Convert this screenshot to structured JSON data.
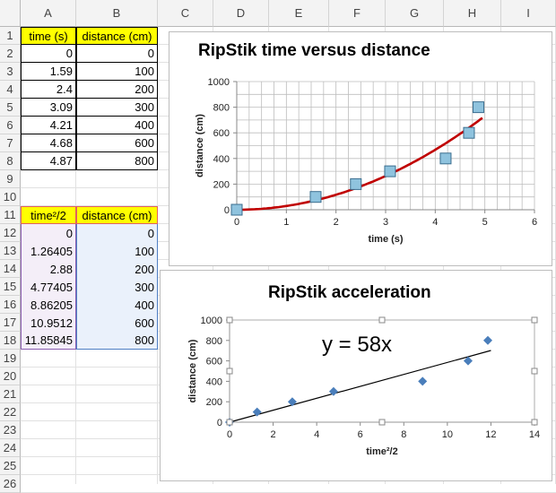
{
  "sheet": {
    "columns": [
      "A",
      "B",
      "C",
      "D",
      "E",
      "F",
      "G",
      "H",
      "I"
    ],
    "rows": [
      "1",
      "2",
      "3",
      "4",
      "5",
      "6",
      "7",
      "8",
      "9",
      "10",
      "11",
      "12",
      "13",
      "14",
      "15",
      "16",
      "17",
      "18",
      "19",
      "20",
      "21",
      "22",
      "23",
      "24",
      "25",
      "26"
    ],
    "table1": {
      "headers": [
        "time (s)",
        "distance (cm)"
      ],
      "rows": [
        [
          "0",
          "0"
        ],
        [
          "1.59",
          "100"
        ],
        [
          "2.4",
          "200"
        ],
        [
          "3.09",
          "300"
        ],
        [
          "4.21",
          "400"
        ],
        [
          "4.68",
          "600"
        ],
        [
          "4.87",
          "800"
        ]
      ]
    },
    "table2": {
      "headers": [
        "time²/2",
        "distance (cm)"
      ],
      "rows": [
        [
          "0",
          "0"
        ],
        [
          "1.26405",
          "100"
        ],
        [
          "2.88",
          "200"
        ],
        [
          "4.77405",
          "300"
        ],
        [
          "8.86205",
          "400"
        ],
        [
          "10.9512",
          "600"
        ],
        [
          "11.85845",
          "800"
        ]
      ]
    }
  },
  "chart_data": [
    {
      "type": "scatter",
      "title": "RipStik time versus distance",
      "xlabel": "time (s)",
      "ylabel": "distance (cm)",
      "xlim": [
        0,
        6
      ],
      "ylim": [
        0,
        1000
      ],
      "xticks": [
        "0",
        "1",
        "2",
        "3",
        "4",
        "5",
        "6"
      ],
      "yticks": [
        "0",
        "200",
        "400",
        "600",
        "800",
        "1000"
      ],
      "grid": true,
      "marker": "square",
      "marker_color": "#8fc3de",
      "trend_color": "#c00000",
      "trendline": "polynomial",
      "x": [
        0,
        1.59,
        2.4,
        3.09,
        4.21,
        4.68,
        4.87
      ],
      "y": [
        0,
        100,
        200,
        300,
        400,
        600,
        800
      ]
    },
    {
      "type": "scatter",
      "title": "RipStik acceleration",
      "xlabel": "time²/2",
      "ylabel": "distance (cm)",
      "xlim": [
        0,
        14
      ],
      "ylim": [
        0,
        1000
      ],
      "xticks": [
        "0",
        "2",
        "4",
        "6",
        "8",
        "10",
        "12",
        "14"
      ],
      "yticks": [
        "0",
        "200",
        "400",
        "600",
        "800",
        "1000"
      ],
      "grid": false,
      "marker": "diamond",
      "marker_color": "#4a7ebb",
      "trend_color": "#000000",
      "trendline": "linear",
      "equation": "y = 58x",
      "x": [
        0,
        1.26405,
        2.88,
        4.77405,
        8.86205,
        10.9512,
        11.85845
      ],
      "y": [
        0,
        100,
        200,
        300,
        400,
        600,
        800
      ]
    }
  ]
}
